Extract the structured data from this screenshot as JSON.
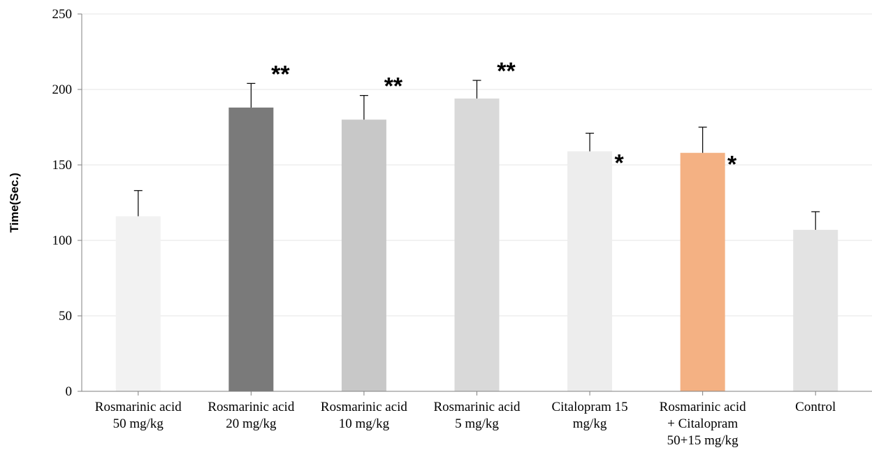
{
  "chart_data": {
    "type": "bar",
    "ylabel": "Time(Sec.)",
    "ylim": [
      0,
      250
    ],
    "yticks": [
      0,
      50,
      100,
      150,
      200,
      250
    ],
    "grid": true,
    "legend": "none",
    "categories": [
      [
        "Rosmarinic acid",
        "50 mg/kg"
      ],
      [
        "Rosmarinic acid",
        "20 mg/kg"
      ],
      [
        "Rosmarinic acid",
        "10 mg/kg"
      ],
      [
        "Rosmarinic acid",
        "5 mg/kg"
      ],
      [
        "Citalopram 15",
        "mg/kg"
      ],
      [
        "Rosmarinic acid",
        "+ Citalopram",
        "50+15 mg/kg"
      ],
      [
        "Control"
      ]
    ],
    "values": [
      116,
      188,
      180,
      194,
      159,
      158,
      107
    ],
    "errors": [
      17,
      16,
      16,
      12,
      12,
      17,
      12
    ],
    "significance": [
      "",
      "**",
      "**",
      "**",
      "*",
      "*",
      ""
    ],
    "colors": [
      "#f2f2f2",
      "#7a7a7a",
      "#c8c8c8",
      "#d9d9d9",
      "#ededed",
      "#f4b183",
      "#e3e3e3"
    ]
  }
}
